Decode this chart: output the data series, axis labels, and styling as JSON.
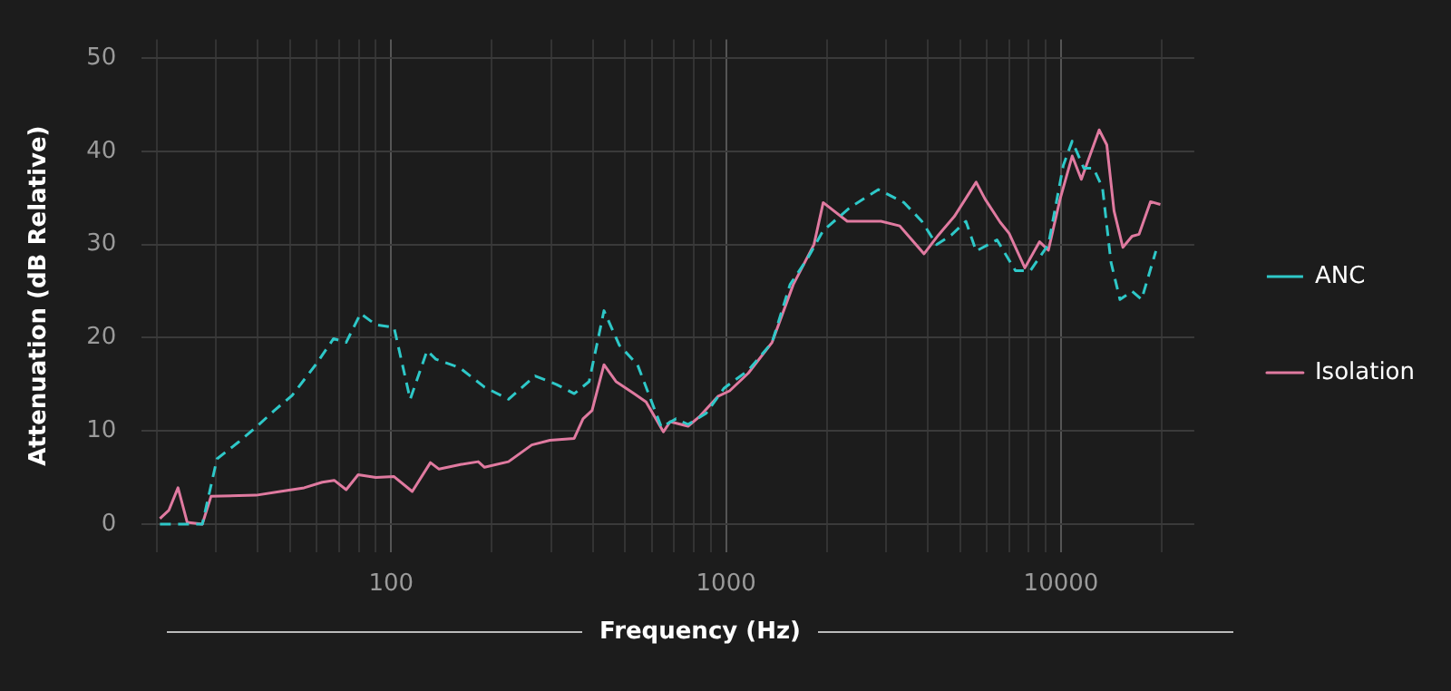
{
  "chart_data": {
    "type": "line",
    "xlabel": "Frequency (Hz)",
    "ylabel": "Attenuation (dB Relative)",
    "log": "x",
    "grid": true,
    "legend": "right",
    "line_style": "solid",
    "marker": "none",
    "xlim": [
      18,
      25000
    ],
    "ylim": [
      -3,
      52
    ],
    "xticks": [
      {
        "value": 20,
        "label": null
      },
      {
        "value": 30,
        "label": null
      },
      {
        "value": 40,
        "label": null
      },
      {
        "value": 50,
        "label": null
      },
      {
        "value": 60,
        "label": null
      },
      {
        "value": 70,
        "label": null
      },
      {
        "value": 80,
        "label": null
      },
      {
        "value": 90,
        "label": null
      },
      100,
      {
        "value": 200,
        "label": null
      },
      {
        "value": 300,
        "label": null
      },
      {
        "value": 400,
        "label": null
      },
      {
        "value": 500,
        "label": null
      },
      {
        "value": 600,
        "label": null
      },
      {
        "value": 700,
        "label": null
      },
      {
        "value": 800,
        "label": null
      },
      {
        "value": 900,
        "label": null
      },
      1000,
      {
        "value": 2000,
        "label": null
      },
      {
        "value": 3000,
        "label": null
      },
      {
        "value": 4000,
        "label": null
      },
      {
        "value": 5000,
        "label": null
      },
      {
        "value": 6000,
        "label": null
      },
      {
        "value": 7000,
        "label": null
      },
      {
        "value": 8000,
        "label": null
      },
      {
        "value": 9000,
        "label": null
      },
      10000,
      {
        "value": 20000,
        "label": null
      }
    ],
    "yticks": [
      0,
      10,
      20,
      30,
      40,
      50
    ],
    "series": [
      {
        "name": "ANC",
        "color": "#2ec8c8",
        "line_style": "dashed",
        "x": [
          20.4,
          27.3,
          30.2,
          35,
          39.5,
          44.8,
          50.6,
          59.5,
          67.3,
          73.4,
          81,
          90,
          102,
          114,
          128,
          136,
          160,
          190,
          224,
          269,
          311,
          352,
          390,
          432,
          480,
          544,
          641,
          709,
          770,
          872,
          987,
          1165,
          1372,
          1552,
          1750,
          1950,
          2350,
          2850,
          3400,
          3840,
          4250,
          4700,
          5200,
          5580,
          6440,
          7310,
          8100,
          9170,
          10160,
          10800,
          11700,
          12500,
          13300,
          14100,
          15000,
          16300,
          17400,
          19200
        ],
        "values": [
          0,
          0,
          7,
          8.8,
          10.4,
          12.2,
          13.8,
          17.1,
          19.9,
          19.5,
          22.6,
          21.4,
          21.1,
          13.4,
          18.6,
          17.7,
          16.8,
          14.7,
          13.4,
          15.9,
          15,
          14,
          15.3,
          22.9,
          19.2,
          17.1,
          10.4,
          11.3,
          10.7,
          11.9,
          14.6,
          16.5,
          19.5,
          25.7,
          28.5,
          31.5,
          34,
          35.9,
          34.5,
          32.5,
          30,
          31,
          32.5,
          29.3,
          30.5,
          27.2,
          27.2,
          30,
          38.5,
          41.1,
          38.2,
          38.2,
          36.1,
          28.1,
          24.1,
          25,
          24.1,
          29.3
        ]
      },
      {
        "name": "Isolation",
        "color": "#e07aa0",
        "x": [
          20.4,
          21.7,
          23.1,
          24.6,
          27.3,
          29,
          39.5,
          46.6,
          55,
          62.3,
          67.6,
          73.4,
          79.7,
          90,
          102,
          115.6,
          131,
          139,
          161,
          182,
          190,
          224,
          263,
          298,
          352,
          374,
          398,
          432,
          469,
          531,
          577,
          650,
          681,
          770,
          836,
          945,
          1025,
          1165,
          1372,
          1587,
          1830,
          1950,
          2300,
          2900,
          3300,
          3900,
          4300,
          4800,
          5580,
          5930,
          6580,
          7000,
          7800,
          8630,
          9170,
          9940,
          10800,
          11500,
          13000,
          13700,
          14400,
          15300,
          16300,
          17100,
          18500,
          19800
        ],
        "values": [
          0.6,
          1.5,
          3.9,
          0.2,
          0,
          3,
          3.1,
          3.5,
          3.9,
          4.5,
          4.7,
          3.7,
          5.3,
          5,
          5.1,
          3.5,
          6.6,
          5.9,
          6.4,
          6.7,
          6.1,
          6.7,
          8.5,
          9,
          9.2,
          11.3,
          12.2,
          17.1,
          15.3,
          14,
          13.1,
          9.9,
          11,
          10.5,
          11.6,
          13.7,
          14.3,
          16.2,
          19.5,
          25.7,
          30,
          34.5,
          32.5,
          32.5,
          32,
          29,
          31,
          33,
          36.7,
          34.9,
          32.4,
          31.2,
          27.5,
          30.3,
          29.4,
          34.9,
          39.5,
          37,
          42.3,
          40.7,
          33.6,
          29.7,
          30.9,
          31.1,
          34.6,
          34.3
        ]
      }
    ]
  }
}
